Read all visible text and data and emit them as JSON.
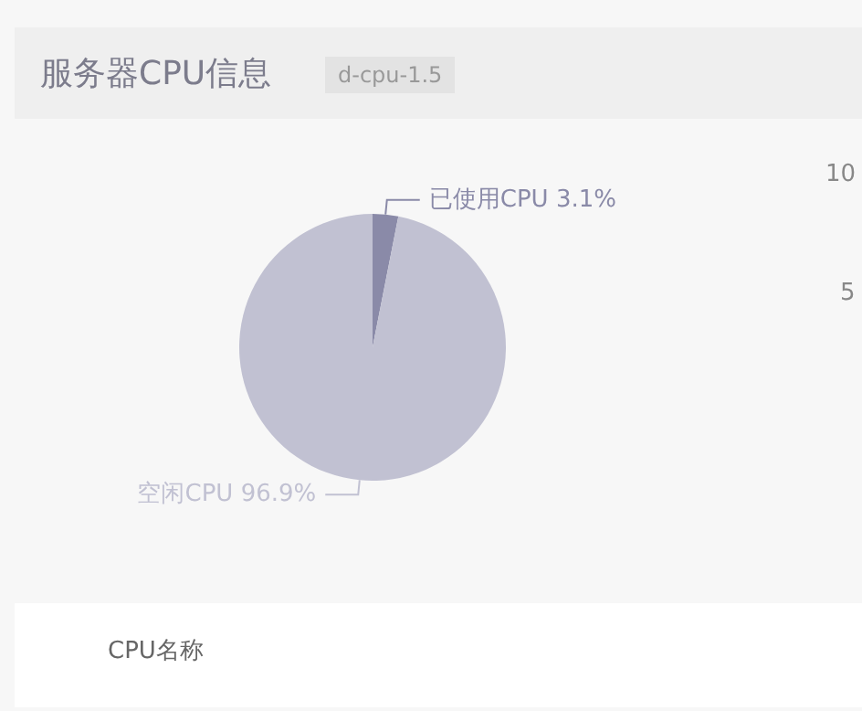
{
  "chart_data": {
    "type": "pie",
    "title": "服务器CPU信息",
    "subtitle": "d-cpu-1.5",
    "categories": [
      "已使用CPU",
      "空闲CPU"
    ],
    "values": [
      3.1,
      96.9
    ],
    "colors": [
      "#8a8aa8",
      "#c1c1d2"
    ],
    "value_labels": [
      "3.1%",
      "96.9%"
    ],
    "legend": false,
    "annotations": [
      "10",
      "5",
      "CPU名称"
    ]
  }
}
